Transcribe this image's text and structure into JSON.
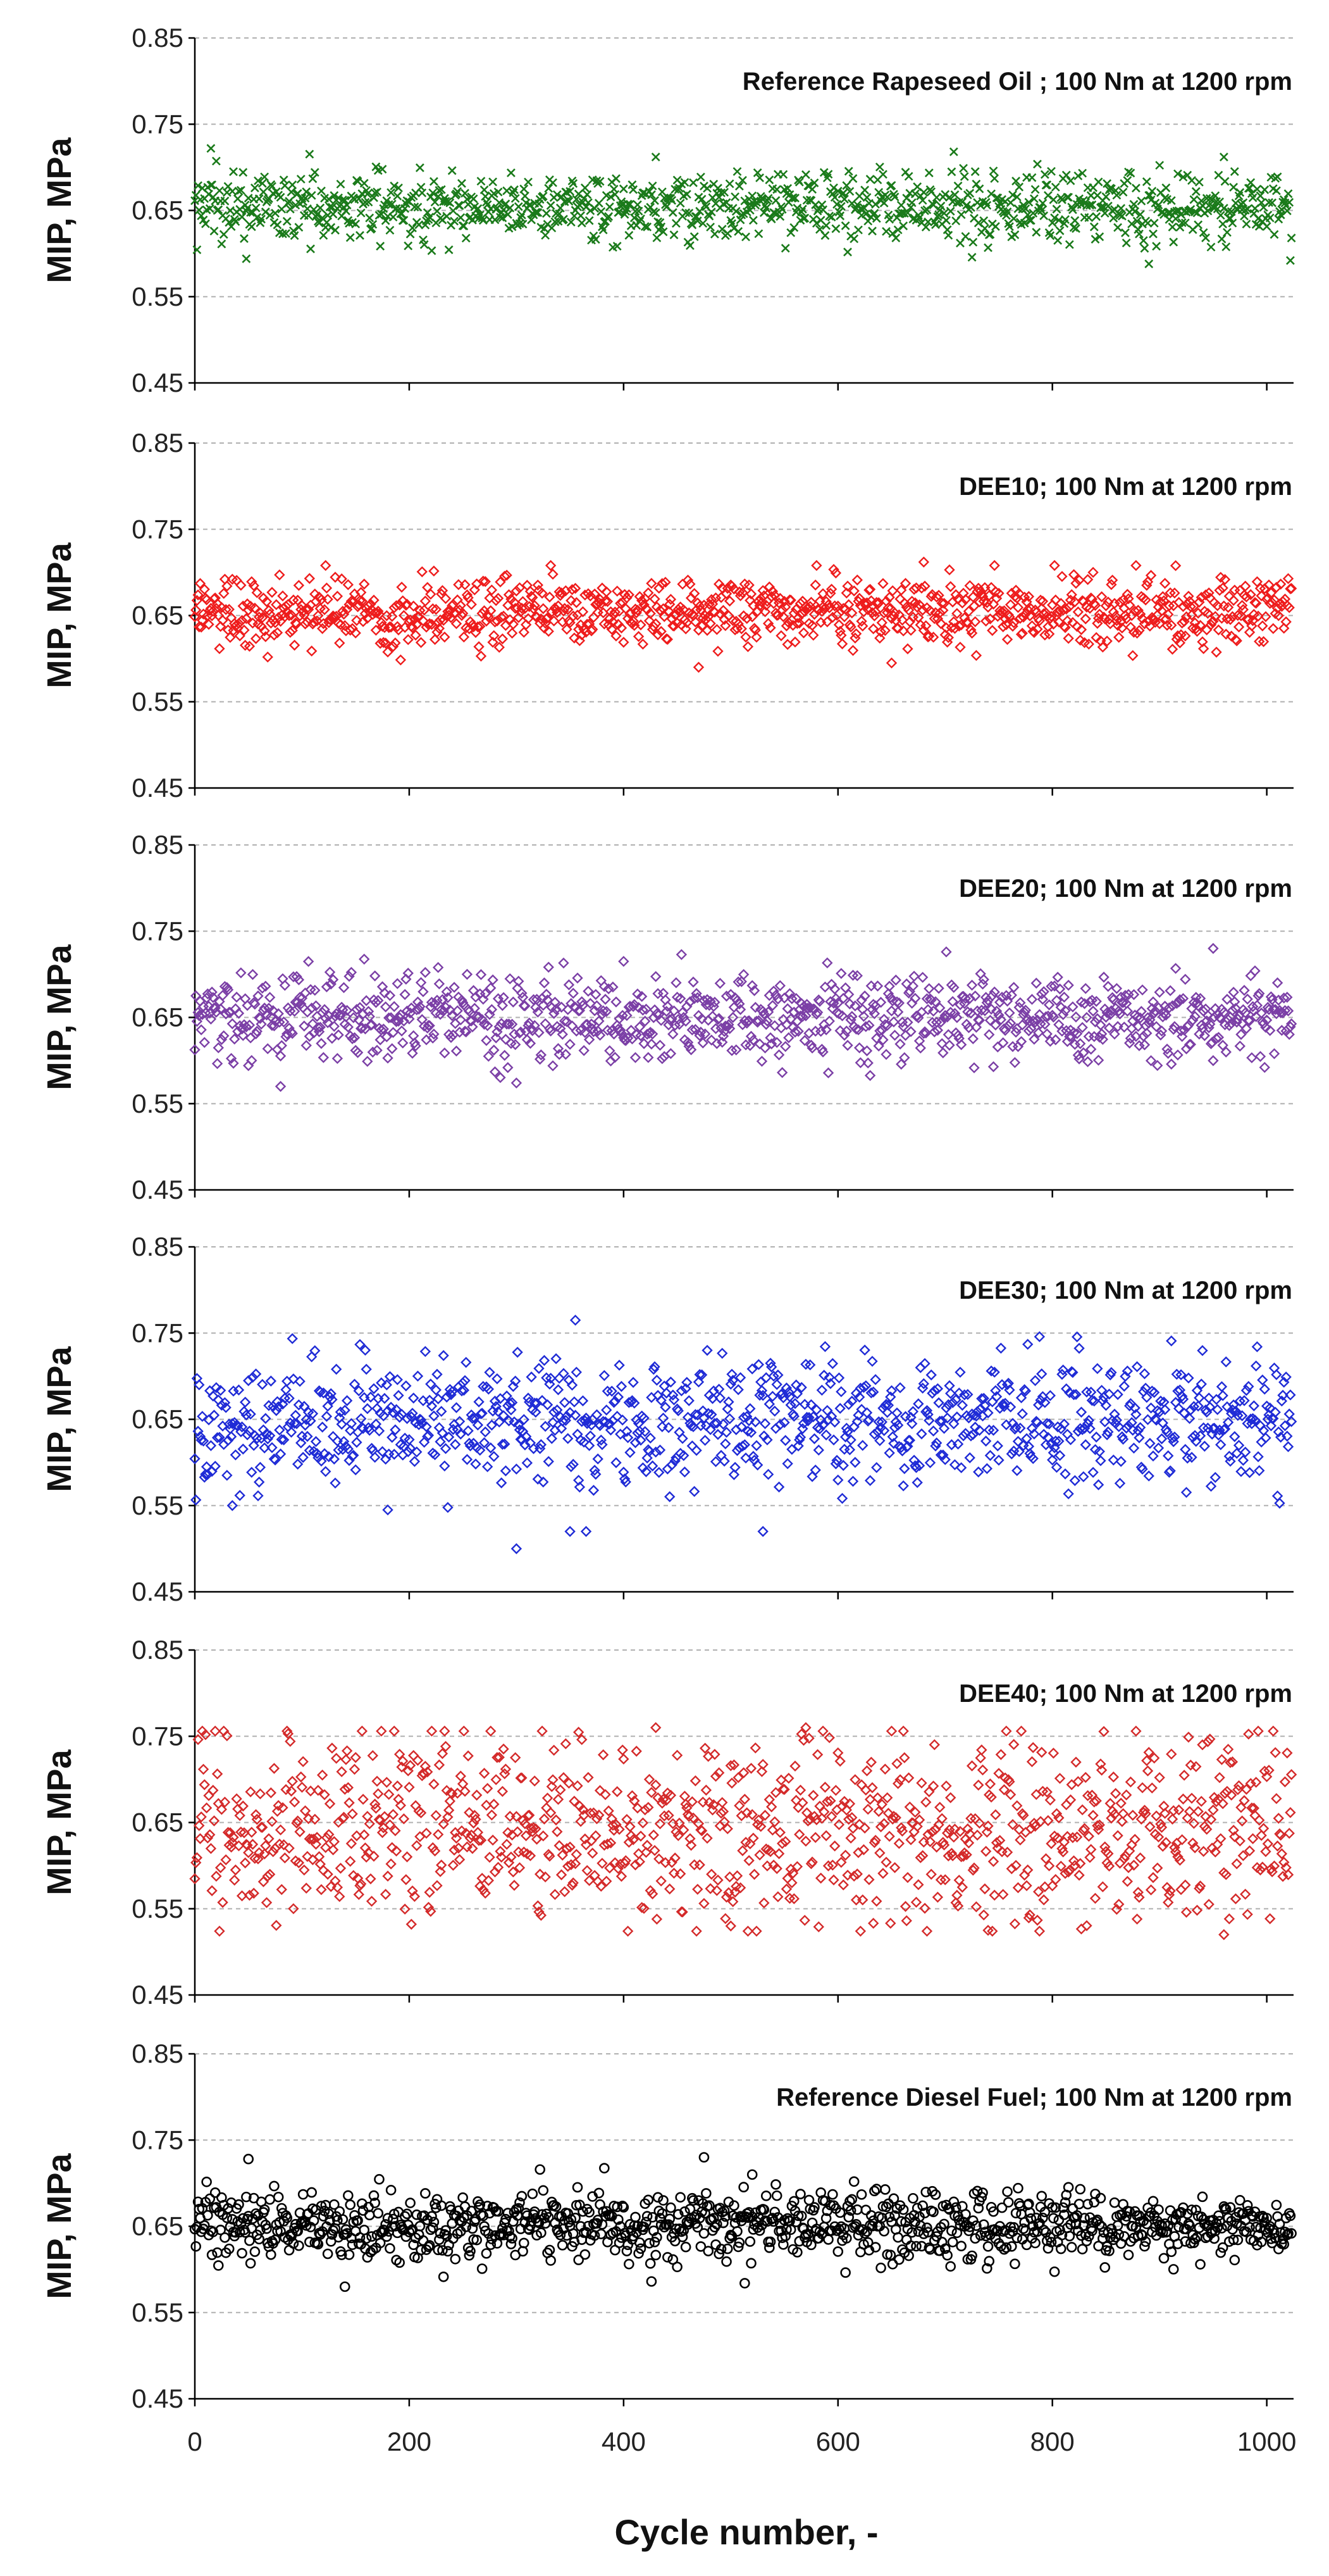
{
  "chart_data": {
    "type": "scatter",
    "xlabel": "Cycle number, -",
    "ylabel": "MIP, MPa",
    "xlim": [
      0,
      1025
    ],
    "xticks": [
      0,
      200,
      400,
      600,
      800,
      1000
    ],
    "ylim": [
      0.45,
      0.85
    ],
    "yticks": [
      "0.85",
      "0.75",
      "0.65",
      "0.55",
      "0.45"
    ],
    "points_per_series": 1024,
    "series": [
      {
        "name": "Reference Rapeseed Oil ; 100 Nm at 1200 rpm",
        "color": "#1a7a1a",
        "marker": "x",
        "mean": 0.655,
        "spread": 0.02,
        "min": 0.588,
        "max": 0.722,
        "outliers": [
          {
            "x": 15,
            "y": 0.722
          },
          {
            "x": 48,
            "y": 0.594
          },
          {
            "x": 430,
            "y": 0.712
          },
          {
            "x": 890,
            "y": 0.588
          },
          {
            "x": 960,
            "y": 0.712
          }
        ]
      },
      {
        "name": "DEE10; 100 Nm at 1200 rpm",
        "color": "#ee1c1c",
        "marker": "diamond",
        "mean": 0.655,
        "spread": 0.02,
        "min": 0.588,
        "max": 0.712,
        "outliers": [
          {
            "x": 470,
            "y": 0.59
          },
          {
            "x": 650,
            "y": 0.595
          },
          {
            "x": 680,
            "y": 0.712
          }
        ]
      },
      {
        "name": "DEE20; 100 Nm at 1200 rpm",
        "color": "#7b3fa6",
        "marker": "diamond",
        "mean": 0.65,
        "spread": 0.025,
        "min": 0.57,
        "max": 0.73,
        "outliers": [
          {
            "x": 80,
            "y": 0.57
          },
          {
            "x": 400,
            "y": 0.715
          },
          {
            "x": 950,
            "y": 0.73
          }
        ]
      },
      {
        "name": "DEE30; 100 Nm at 1200 rpm",
        "color": "#1f2bd6",
        "marker": "diamond",
        "mean": 0.65,
        "spread": 0.035,
        "min": 0.5,
        "max": 0.765,
        "outliers": [
          {
            "x": 300,
            "y": 0.5
          },
          {
            "x": 350,
            "y": 0.52
          },
          {
            "x": 365,
            "y": 0.52
          },
          {
            "x": 355,
            "y": 0.765
          },
          {
            "x": 530,
            "y": 0.52
          },
          {
            "x": 180,
            "y": 0.545
          },
          {
            "x": 35,
            "y": 0.55
          }
        ]
      },
      {
        "name": "DEE40; 100 Nm at 1200 rpm",
        "color": "#d42a2a",
        "marker": "diamond",
        "mean": 0.645,
        "spread": 0.055,
        "min": 0.52,
        "max": 0.76,
        "outliers": [
          {
            "x": 960,
            "y": 0.52
          },
          {
            "x": 740,
            "y": 0.525
          },
          {
            "x": 500,
            "y": 0.53
          },
          {
            "x": 430,
            "y": 0.76
          },
          {
            "x": 570,
            "y": 0.76
          }
        ]
      },
      {
        "name": "Reference Diesel Fuel; 100 Nm at 1200 rpm",
        "color": "#000000",
        "marker": "circle",
        "mean": 0.65,
        "spread": 0.02,
        "min": 0.58,
        "max": 0.73,
        "outliers": [
          {
            "x": 50,
            "y": 0.728
          },
          {
            "x": 475,
            "y": 0.73
          },
          {
            "x": 140,
            "y": 0.58
          },
          {
            "x": 520,
            "y": 0.71
          }
        ]
      }
    ]
  }
}
